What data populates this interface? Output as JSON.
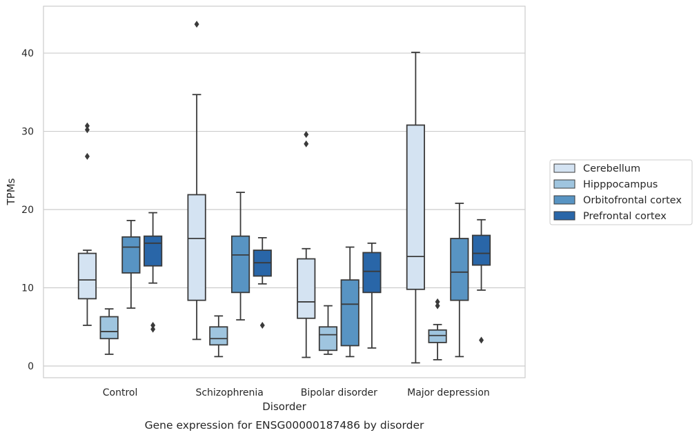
{
  "chart_data": {
    "type": "box",
    "xlabel": "Disorder",
    "ylabel": "TPMs",
    "caption": "Gene expression for ENSG00000187486 by disorder",
    "ylim": [
      -1.5,
      46
    ],
    "yticks": [
      0,
      10,
      20,
      30,
      40
    ],
    "grid": "horizontal",
    "legend_position": "right",
    "categories": [
      "Control",
      "Schizophrenia",
      "Bipolar disorder",
      "Major depression"
    ],
    "series": [
      {
        "name": "Cerebellum",
        "color": "#d4e3f2",
        "boxes": [
          {
            "whisker_low": 5.2,
            "q1": 8.6,
            "median": 11.0,
            "q3": 14.4,
            "whisker_high": 14.8,
            "outliers": [
              26.8,
              30.2,
              30.7
            ]
          },
          {
            "whisker_low": 3.4,
            "q1": 8.4,
            "median": 16.3,
            "q3": 21.9,
            "whisker_high": 34.7,
            "outliers": [
              43.7
            ]
          },
          {
            "whisker_low": 1.1,
            "q1": 6.1,
            "median": 8.2,
            "q3": 13.7,
            "whisker_high": 15.0,
            "outliers": [
              28.4,
              29.6
            ]
          },
          {
            "whisker_low": 0.4,
            "q1": 9.8,
            "median": 14.0,
            "q3": 30.8,
            "whisker_high": 40.1,
            "outliers": []
          }
        ]
      },
      {
        "name": "Hipppocampus",
        "color": "#9fc5df",
        "boxes": [
          {
            "whisker_low": 1.5,
            "q1": 3.5,
            "median": 4.4,
            "q3": 6.3,
            "whisker_high": 7.3,
            "outliers": []
          },
          {
            "whisker_low": 1.2,
            "q1": 2.7,
            "median": 3.5,
            "q3": 5.0,
            "whisker_high": 6.4,
            "outliers": []
          },
          {
            "whisker_low": 1.5,
            "q1": 2.0,
            "median": 4.0,
            "q3": 5.0,
            "whisker_high": 7.7,
            "outliers": []
          },
          {
            "whisker_low": 0.8,
            "q1": 3.0,
            "median": 3.9,
            "q3": 4.6,
            "whisker_high": 5.3,
            "outliers": [
              7.7,
              8.2
            ]
          }
        ]
      },
      {
        "name": "Orbitofrontal cortex",
        "color": "#5894c3",
        "boxes": [
          {
            "whisker_low": 7.4,
            "q1": 11.9,
            "median": 15.2,
            "q3": 16.5,
            "whisker_high": 18.6,
            "outliers": []
          },
          {
            "whisker_low": 5.9,
            "q1": 9.4,
            "median": 14.2,
            "q3": 16.6,
            "whisker_high": 22.2,
            "outliers": []
          },
          {
            "whisker_low": 1.2,
            "q1": 2.6,
            "median": 7.9,
            "q3": 11.0,
            "whisker_high": 15.2,
            "outliers": []
          },
          {
            "whisker_low": 1.2,
            "q1": 8.4,
            "median": 12.0,
            "q3": 16.3,
            "whisker_high": 20.8,
            "outliers": []
          }
        ]
      },
      {
        "name": "Prefrontal cortex",
        "color": "#2966a8",
        "boxes": [
          {
            "whisker_low": 10.6,
            "q1": 12.8,
            "median": 15.7,
            "q3": 16.6,
            "whisker_high": 19.6,
            "outliers": [
              4.7,
              5.2
            ]
          },
          {
            "whisker_low": 10.5,
            "q1": 11.5,
            "median": 13.2,
            "q3": 14.8,
            "whisker_high": 16.4,
            "outliers": [
              5.2
            ]
          },
          {
            "whisker_low": 2.3,
            "q1": 9.4,
            "median": 12.1,
            "q3": 14.5,
            "whisker_high": 15.7,
            "outliers": []
          },
          {
            "whisker_low": 9.7,
            "q1": 12.9,
            "median": 14.4,
            "q3": 16.7,
            "whisker_high": 18.7,
            "outliers": [
              3.3
            ]
          }
        ]
      }
    ]
  }
}
